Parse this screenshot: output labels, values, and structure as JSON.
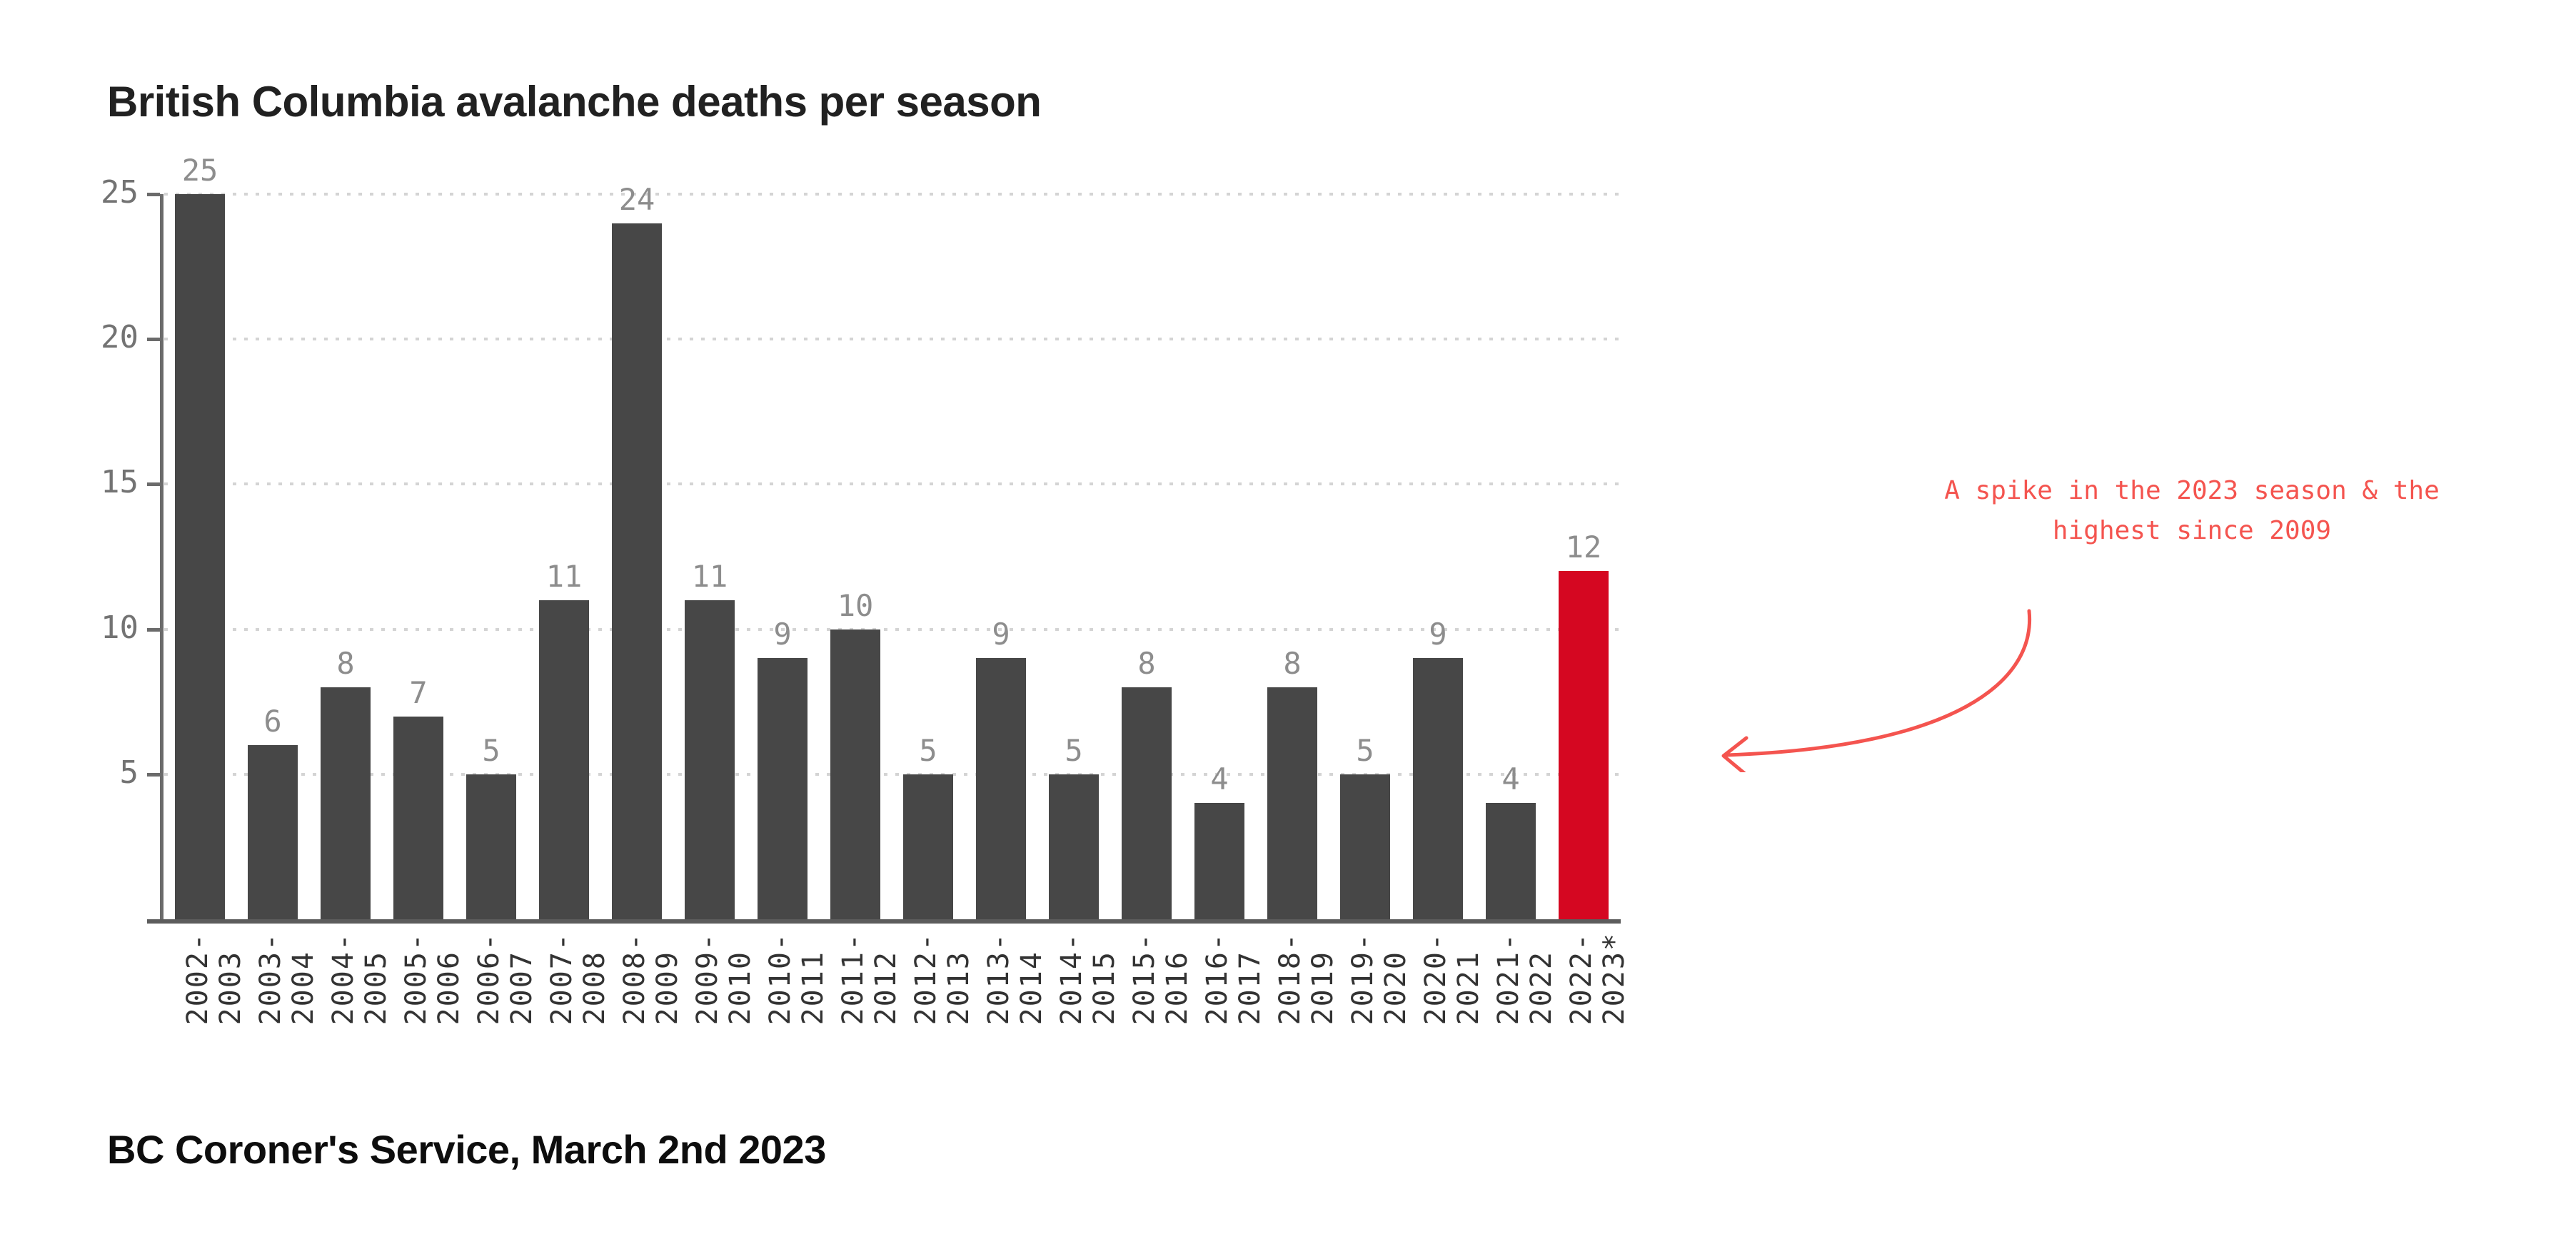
{
  "title": "British Columbia avalanche deaths per season",
  "source": "BC Coroner's Service, March 2nd 2023",
  "annotation": {
    "line1": "A spike in the 2023 season & the",
    "line2": "highest since 2009"
  },
  "colors": {
    "bar": "#474747",
    "highlight_bar": "#d50721",
    "annotation_red": "#f4544f",
    "grid": "#d4d4d4",
    "axis": "#6b6b6b",
    "baseline": "#5c5c5c",
    "value_label": "#8d8d8d",
    "y_tick_label": "#737373",
    "x_tick_label": "#333333",
    "title_text": "#212121",
    "source_text": "#0d0d0d"
  },
  "chart_data": {
    "type": "bar",
    "title": "British Columbia avalanche deaths per season",
    "categories": [
      "2002-2003",
      "2003-2004",
      "2004-2005",
      "2005-2006",
      "2006-2007",
      "2007-2008",
      "2008-2009",
      "2009-2010",
      "2010-2011",
      "2011-2012",
      "2012-2013",
      "2013-2014",
      "2014-2015",
      "2015-2016",
      "2016-2017",
      "2018-2019",
      "2019-2020",
      "2020-2021",
      "2021-2022",
      "2022-2023*"
    ],
    "values": [
      25,
      6,
      8,
      7,
      5,
      11,
      24,
      11,
      9,
      10,
      5,
      9,
      5,
      8,
      4,
      8,
      5,
      9,
      4,
      12
    ],
    "highlight_index": 19,
    "highlight_label": "2022-2023*",
    "highlight_value": 12,
    "yticks": [
      5,
      10,
      15,
      20,
      25
    ],
    "ylim": [
      0,
      25
    ],
    "xlabel": "",
    "ylabel": "",
    "grid": "horizontal-dotted",
    "legend": "none",
    "bar_value_labels": true,
    "x_label_rotation": "vertical-bottom-to-top"
  }
}
